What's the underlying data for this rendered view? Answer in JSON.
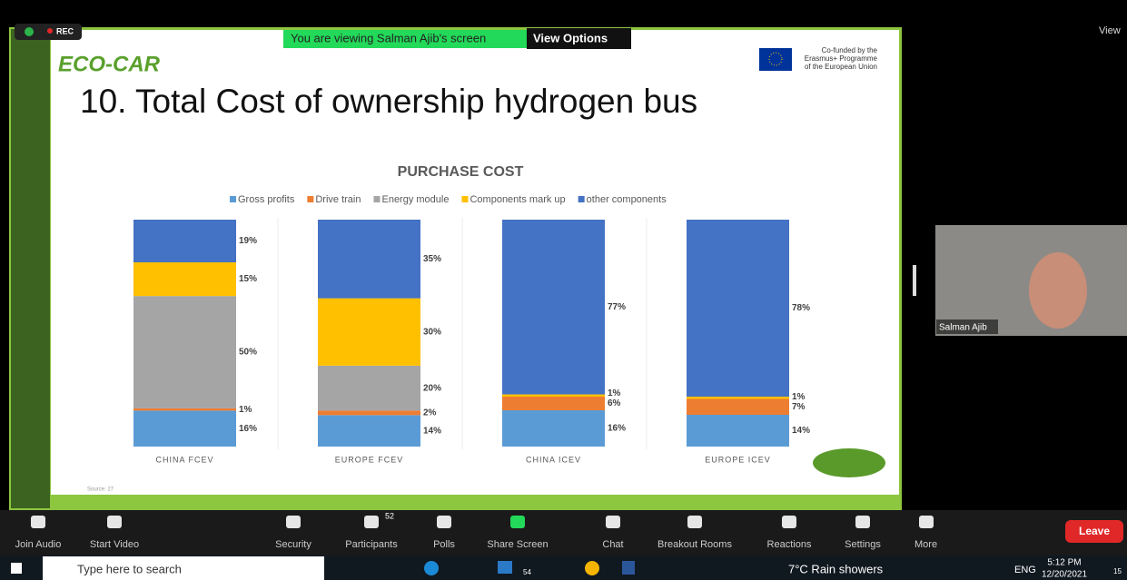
{
  "meeting": {
    "rec": "REC",
    "banner": "You are viewing Salman Ajib's screen",
    "view_options": "View Options",
    "view": "View",
    "participant": "Salman Ajib"
  },
  "slide": {
    "logo": "ECO-CAR",
    "cofunded": [
      "Co-funded by the",
      "Erasmus+ Programme",
      "of the European Union"
    ],
    "title": "10. Total Cost of ownership hydrogen bus",
    "source": "Source: 27",
    "chart_data": {
      "type": "bar",
      "stacked": true,
      "title": "PURCHASE COST",
      "categories": [
        "CHINA FCEV",
        "EUROPE FCEV",
        "CHINA ICEV",
        "EUROPE ICEV"
      ],
      "series": [
        {
          "name": "Gross profits",
          "color": "#5b9bd5",
          "values": [
            16,
            14,
            16,
            14
          ],
          "value_labels": [
            "16%",
            "14%",
            "16%",
            "14%"
          ]
        },
        {
          "name": "Drive train",
          "color": "#ed7d31",
          "values": [
            1,
            2,
            6,
            7
          ],
          "value_labels": [
            "1%",
            "2%",
            "6%",
            "7%"
          ]
        },
        {
          "name": "Energy module",
          "color": "#a5a5a5",
          "values": [
            50,
            20,
            null,
            null
          ],
          "value_labels": [
            "50%",
            "20%",
            null,
            null
          ]
        },
        {
          "name": "Components mark up",
          "color": "#ffc000",
          "values": [
            15,
            30,
            1,
            1
          ],
          "value_labels": [
            "15%",
            "30%",
            "1%",
            "1%"
          ]
        },
        {
          "name": "other  components",
          "color": "#4472c4",
          "values": [
            19,
            35,
            77,
            78
          ],
          "value_labels": [
            "19%",
            "35%",
            "77%",
            "78%"
          ]
        }
      ]
    }
  },
  "toolbar": {
    "items": [
      "Join Audio",
      "Start Video",
      "Security",
      "Participants",
      "Polls",
      "Share Screen",
      "Chat",
      "Breakout Rooms",
      "Reactions",
      "Settings",
      "More"
    ],
    "participants_count": "52",
    "leave": "Leave"
  },
  "taskbar": {
    "search": "Type here to search",
    "badge": "54",
    "weather": "7°C Rain showers",
    "language": "ENG",
    "time": "5:12 PM",
    "date": "12/20/2021",
    "notifications": "15"
  }
}
